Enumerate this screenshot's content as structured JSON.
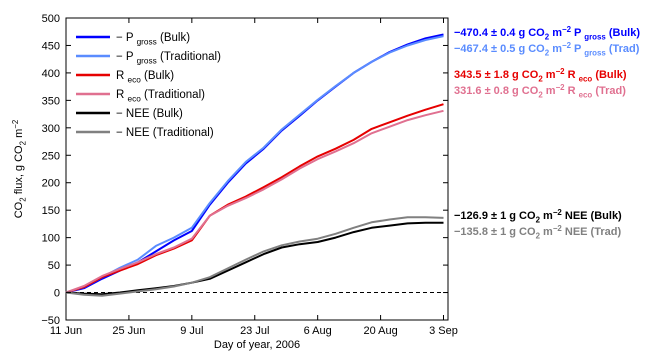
{
  "chart_data": {
    "type": "line",
    "xlabel": "Day of year, 2006",
    "ylabel": "CO₂ flux, g CO₂ m⁻²",
    "xlim": [
      162,
      247
    ],
    "ylim": [
      -50,
      500
    ],
    "x_ticks": [
      {
        "x": 162,
        "label": "11 Jun"
      },
      {
        "x": 176,
        "label": "25 Jun"
      },
      {
        "x": 190,
        "label": "9 Jul"
      },
      {
        "x": 204,
        "label": "23 Jul"
      },
      {
        "x": 218,
        "label": "6 Aug"
      },
      {
        "x": 232,
        "label": "20 Aug"
      },
      {
        "x": 246,
        "label": "3 Sep"
      }
    ],
    "y_ticks": [
      -50,
      0,
      50,
      100,
      150,
      200,
      250,
      300,
      350,
      400,
      450,
      500
    ],
    "grid": false,
    "legend_position": "top-left",
    "series": [
      {
        "name": "− P gross (Bulk)",
        "color": "#0000ff",
        "end_label": "−470.4 ± 0.4 g CO₂ m⁻² P gross (Bulk)",
        "x": [
          162,
          166,
          170,
          174,
          178,
          182,
          186,
          190,
          194,
          198,
          202,
          206,
          210,
          214,
          218,
          222,
          226,
          230,
          234,
          238,
          242,
          246
        ],
        "y": [
          0,
          8,
          25,
          40,
          55,
          75,
          95,
          112,
          160,
          200,
          235,
          262,
          295,
          322,
          350,
          375,
          400,
          420,
          438,
          452,
          463,
          470
        ]
      },
      {
        "name": "− P gross (Traditional)",
        "color": "#5a8cff",
        "end_label": "−467.4 ± 0.5 g CO₂ m⁻² P gross (Trad)",
        "x": [
          162,
          166,
          170,
          174,
          178,
          182,
          186,
          190,
          194,
          198,
          202,
          206,
          210,
          214,
          218,
          222,
          226,
          230,
          234,
          238,
          242,
          246
        ],
        "y": [
          0,
          10,
          28,
          45,
          60,
          85,
          100,
          118,
          163,
          203,
          238,
          264,
          297,
          324,
          351,
          376,
          400,
          420,
          437,
          450,
          460,
          467
        ]
      },
      {
        "name": "R eco (Bulk)",
        "color": "#e60000",
        "end_label": "343.5 ± 1.8 g CO₂ m⁻² R eco (Bulk)",
        "x": [
          162,
          166,
          170,
          174,
          178,
          182,
          186,
          190,
          194,
          198,
          202,
          206,
          210,
          214,
          218,
          222,
          226,
          230,
          234,
          238,
          242,
          246
        ],
        "y": [
          0,
          10,
          28,
          40,
          52,
          68,
          80,
          95,
          140,
          160,
          175,
          192,
          210,
          230,
          248,
          262,
          278,
          298,
          310,
          322,
          333,
          343
        ]
      },
      {
        "name": "R eco (Traditional)",
        "color": "#e07090",
        "end_label": "331.6 ± 0.8 g CO₂ m⁻² R eco (Trad)",
        "x": [
          162,
          166,
          170,
          174,
          178,
          182,
          186,
          190,
          194,
          198,
          202,
          206,
          210,
          214,
          218,
          222,
          226,
          230,
          234,
          238,
          242,
          246
        ],
        "y": [
          0,
          12,
          30,
          43,
          55,
          70,
          82,
          98,
          140,
          158,
          172,
          188,
          206,
          226,
          243,
          257,
          272,
          290,
          302,
          314,
          323,
          331
        ]
      },
      {
        "name": "− NEE (Bulk)",
        "color": "#000000",
        "end_label": "−126.9 ± 1 g CO₂ m⁻² NEE (Bulk)",
        "x": [
          162,
          166,
          170,
          174,
          178,
          182,
          186,
          190,
          194,
          198,
          202,
          206,
          210,
          214,
          218,
          222,
          226,
          230,
          234,
          238,
          242,
          246
        ],
        "y": [
          0,
          -2,
          -3,
          0,
          4,
          8,
          12,
          18,
          25,
          40,
          55,
          70,
          82,
          88,
          92,
          100,
          110,
          118,
          122,
          126,
          127,
          127
        ]
      },
      {
        "name": "− NEE (Traditional)",
        "color": "#808080",
        "end_label": "−135.8 ± 1 g CO₂ m⁻² NEE (Trad)",
        "x": [
          162,
          166,
          170,
          174,
          178,
          182,
          186,
          190,
          194,
          198,
          202,
          206,
          210,
          214,
          218,
          222,
          226,
          230,
          234,
          238,
          242,
          246
        ],
        "y": [
          0,
          -4,
          -6,
          -2,
          2,
          6,
          11,
          18,
          28,
          44,
          60,
          75,
          86,
          93,
          98,
          107,
          118,
          128,
          133,
          137,
          137,
          136
        ]
      }
    ]
  }
}
